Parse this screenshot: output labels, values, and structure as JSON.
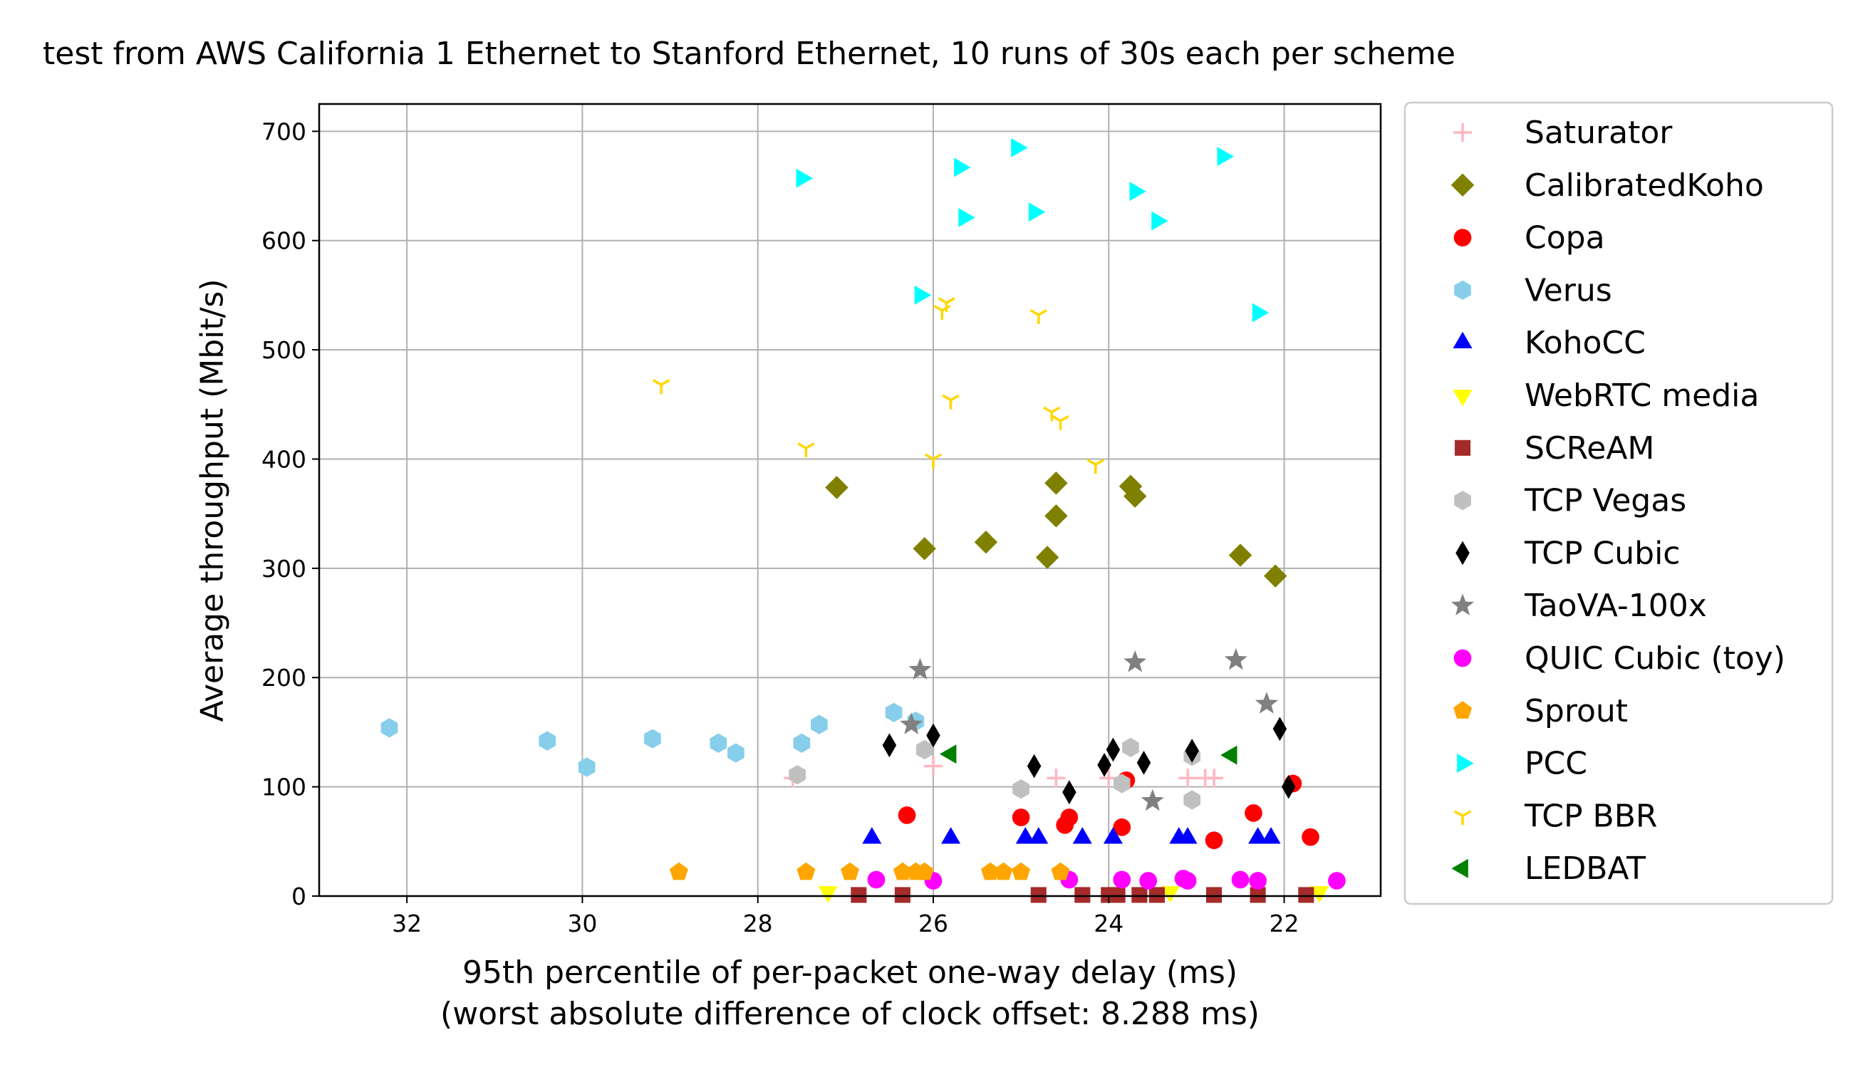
{
  "chart_data": {
    "type": "scatter",
    "title": "test from AWS California 1 Ethernet to Stanford Ethernet, 10 runs of 30s each per scheme",
    "xlabel": "95th percentile of per-packet one-way delay (ms)",
    "xlabel2": "(worst absolute difference of clock offset: 8.288 ms)",
    "ylabel": "Average throughput (Mbit/s)",
    "xlim": [
      33.0,
      20.9
    ],
    "ylim": [
      0,
      725
    ],
    "x_inverted": true,
    "grid": true,
    "legend_position": "outside-right",
    "xticks": [
      32,
      30,
      28,
      26,
      24,
      22
    ],
    "yticks": [
      0,
      100,
      200,
      300,
      400,
      500,
      600,
      700
    ],
    "series": [
      {
        "name": "Saturator",
        "color": "#ffb6c1",
        "marker": "plus",
        "x": [
          27.6,
          26.0,
          24.6,
          24.0,
          23.1,
          22.9,
          22.8
        ],
        "y": [
          108,
          119,
          108,
          108,
          108,
          108,
          108
        ]
      },
      {
        "name": "CalibratedKoho",
        "color": "#808000",
        "marker": "diamond",
        "x": [
          27.1,
          26.1,
          25.4,
          24.6,
          24.6,
          24.7,
          23.75,
          23.7,
          22.5,
          22.1
        ],
        "y": [
          374,
          318,
          324,
          378,
          348,
          310,
          375,
          366,
          312,
          293
        ]
      },
      {
        "name": "Copa",
        "color": "#ff0000",
        "marker": "circle",
        "x": [
          26.3,
          25.0,
          24.5,
          24.45,
          23.85,
          23.8,
          22.8,
          22.35,
          21.9,
          21.7
        ],
        "y": [
          74,
          72,
          65,
          72,
          63,
          106,
          51,
          76,
          103,
          54
        ]
      },
      {
        "name": "Verus",
        "color": "#87ceeb",
        "marker": "hexagon",
        "x": [
          32.2,
          30.4,
          29.95,
          29.2,
          28.45,
          28.25,
          27.5,
          27.3,
          26.45,
          26.2
        ],
        "y": [
          154,
          142,
          118,
          144,
          140,
          131,
          140,
          157,
          168,
          160
        ]
      },
      {
        "name": "KohoCC",
        "color": "#0000ff",
        "marker": "triangle-up",
        "x": [
          26.7,
          25.8,
          24.95,
          24.8,
          24.3,
          23.95,
          23.2,
          23.1,
          22.3,
          22.15
        ],
        "y": [
          53,
          53,
          53,
          53,
          53,
          53,
          53,
          53,
          53,
          53
        ]
      },
      {
        "name": "WebRTC media",
        "color": "#ffff00",
        "marker": "triangle-down",
        "x": [
          27.2,
          23.3,
          21.6
        ],
        "y": [
          4,
          4,
          4
        ]
      },
      {
        "name": "SCReAM",
        "color": "#a52a2a",
        "marker": "square",
        "x": [
          26.85,
          26.35,
          24.8,
          24.3,
          24.0,
          23.9,
          23.65,
          23.45,
          22.8,
          22.3,
          21.75
        ],
        "y": [
          1,
          1,
          1,
          1,
          1,
          1,
          1,
          1,
          1,
          1,
          1
        ]
      },
      {
        "name": "TCP Vegas",
        "color": "#c0c0c0",
        "marker": "hexagon",
        "x": [
          27.55,
          26.1,
          25.0,
          23.85,
          23.75,
          23.05,
          23.05
        ],
        "y": [
          111,
          134,
          98,
          103,
          136,
          88,
          128
        ]
      },
      {
        "name": "TCP Cubic",
        "color": "#000000",
        "marker": "thin_diamond",
        "x": [
          26.5,
          26.0,
          24.85,
          24.45,
          24.05,
          23.95,
          23.6,
          23.05,
          22.05,
          21.95
        ],
        "y": [
          138,
          147,
          119,
          95,
          120,
          134,
          122,
          133,
          153,
          100
        ]
      },
      {
        "name": "TaoVA-100x",
        "color": "#808080",
        "marker": "star",
        "x": [
          26.25,
          26.15,
          23.7,
          23.5,
          22.55,
          22.2
        ],
        "y": [
          157,
          207,
          214,
          87,
          216,
          176
        ]
      },
      {
        "name": "QUIC Cubic (toy)",
        "color": "#ff00ff",
        "marker": "circle",
        "x": [
          26.65,
          26.0,
          24.45,
          23.85,
          23.55,
          23.15,
          23.1,
          22.5,
          22.3,
          21.4
        ],
        "y": [
          15,
          14,
          15,
          15,
          14,
          16,
          14,
          15,
          14,
          14
        ]
      },
      {
        "name": "Sprout",
        "color": "#ffa500",
        "marker": "pentagon",
        "x": [
          28.9,
          27.45,
          26.95,
          26.35,
          26.2,
          26.1,
          25.35,
          25.2,
          25.0,
          24.55
        ],
        "y": [
          22,
          22,
          22,
          22,
          22,
          22,
          22,
          22,
          22,
          22
        ]
      },
      {
        "name": "PCC",
        "color": "#00ffff",
        "marker": "triangle-right",
        "x": [
          27.5,
          26.15,
          25.7,
          25.65,
          25.05,
          24.85,
          23.7,
          23.45,
          22.7,
          22.3
        ],
        "y": [
          657,
          550,
          667,
          621,
          685,
          626,
          645,
          618,
          677,
          534
        ]
      },
      {
        "name": "TCP BBR",
        "color": "#ffd700",
        "marker": "tri",
        "x": [
          29.1,
          27.45,
          26.0,
          25.9,
          25.85,
          25.8,
          24.8,
          24.65,
          24.55,
          24.15
        ],
        "y": [
          468,
          410,
          400,
          536,
          543,
          454,
          532,
          443,
          435,
          395
        ]
      },
      {
        "name": "LEDBAT",
        "color": "#008000",
        "marker": "triangle-left",
        "x": [
          25.8,
          22.6
        ],
        "y": [
          130,
          129
        ]
      }
    ]
  }
}
